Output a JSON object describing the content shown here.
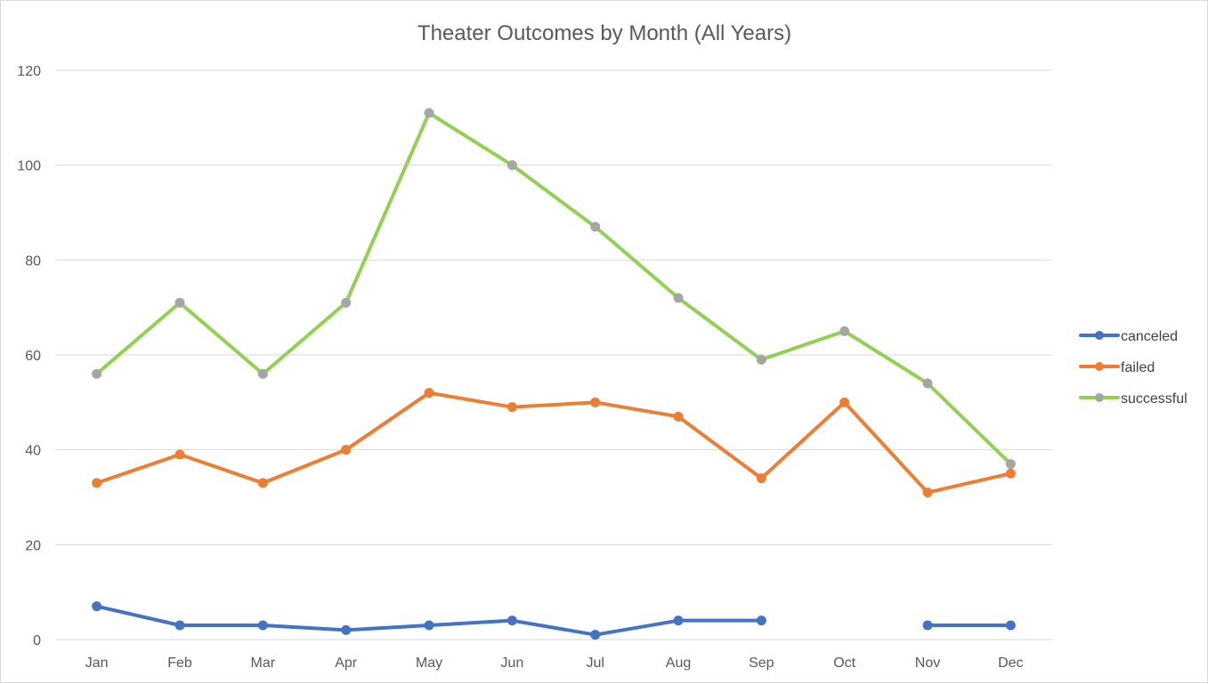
{
  "chart_data": {
    "type": "line",
    "title": "Theater Outcomes by Month (All Years)",
    "xlabel": "",
    "ylabel": "",
    "categories": [
      "Jan",
      "Feb",
      "Mar",
      "Apr",
      "May",
      "Jun",
      "Jul",
      "Aug",
      "Sep",
      "Oct",
      "Nov",
      "Dec"
    ],
    "ylim": [
      0,
      120
    ],
    "yticks": [
      0,
      20,
      40,
      60,
      80,
      100,
      120
    ],
    "grid": true,
    "legend_position": "right",
    "series": [
      {
        "name": "canceled",
        "color": "#4472c4",
        "marker_color": "#4472c4",
        "values": [
          7,
          3,
          3,
          2,
          3,
          4,
          1,
          4,
          4,
          null,
          3,
          3
        ]
      },
      {
        "name": "failed",
        "color": "#ed7d31",
        "marker_color": "#ed7d31",
        "values": [
          33,
          39,
          33,
          40,
          52,
          49,
          50,
          47,
          34,
          50,
          31,
          35
        ]
      },
      {
        "name": "successful",
        "color": "#92d050",
        "marker_color": "#a5a5a5",
        "values": [
          56,
          71,
          56,
          71,
          111,
          100,
          87,
          72,
          59,
          65,
          54,
          37
        ]
      }
    ]
  }
}
